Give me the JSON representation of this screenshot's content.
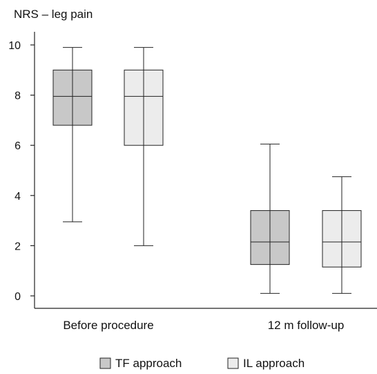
{
  "chart_data": {
    "type": "box",
    "title": "",
    "ylabel": "NRS – leg pain",
    "xlabel": "",
    "ylim": [
      0,
      10
    ],
    "yticks": [
      0,
      2,
      4,
      6,
      8,
      10
    ],
    "categories": [
      "Before procedure",
      "12 m follow-up"
    ],
    "series": [
      {
        "name": "TF approach",
        "color": "#c8c8c8",
        "boxes": [
          {
            "min": 2.95,
            "q1": 6.8,
            "median": 7.95,
            "q3": 9.0,
            "max": 9.9
          },
          {
            "min": 0.1,
            "q1": 1.25,
            "median": 2.15,
            "q3": 3.4,
            "max": 6.05
          }
        ]
      },
      {
        "name": "IL approach",
        "color": "#ececec",
        "boxes": [
          {
            "min": 2.0,
            "q1": 6.0,
            "median": 7.95,
            "q3": 9.0,
            "max": 9.9
          },
          {
            "min": 0.1,
            "q1": 1.15,
            "median": 2.15,
            "q3": 3.4,
            "max": 4.75
          }
        ]
      }
    ],
    "legend": {
      "position": "bottom"
    }
  }
}
